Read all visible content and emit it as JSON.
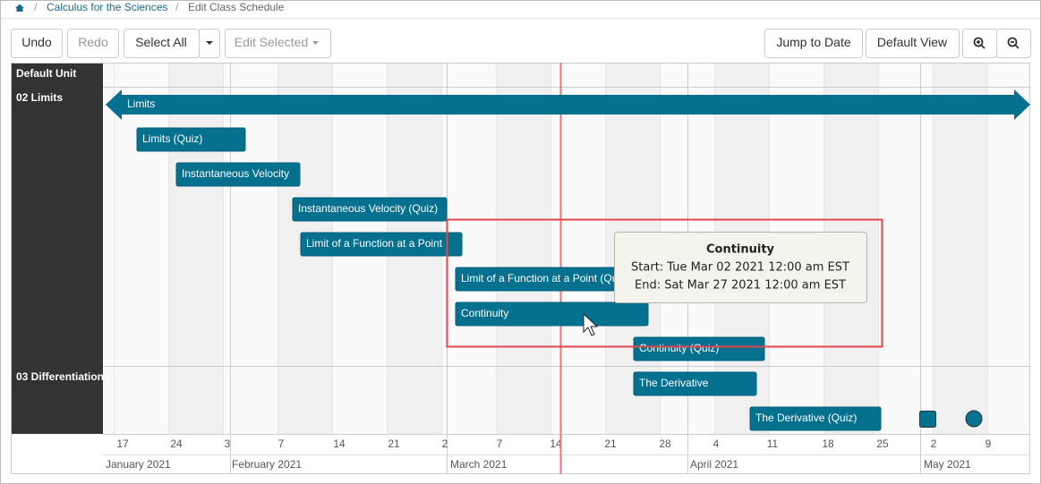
{
  "breadcrumb": {
    "items": [
      "Calculus for the Sciences",
      "Edit Class Schedule"
    ]
  },
  "toolbar": {
    "left": [
      "Undo",
      "Redo",
      "Select All",
      "Edit Selected"
    ],
    "right": [
      "Jump to Date",
      "Default View"
    ]
  },
  "timeline": {
    "units": [
      "Default Unit",
      "02 Limits",
      "03 Differentiation"
    ],
    "items": [
      "Limits",
      "Limits (Quiz)",
      "Instantaneous Velocity",
      "Instantaneous Velocity (Quiz)",
      "Limit of a Function at a Point",
      "Limit of a Function at a Point (Quiz)",
      "Continuity",
      "Continuity (Quiz)",
      "The Derivative",
      "The Derivative (Quiz)"
    ],
    "day_ticks": [
      "17",
      "24",
      "3",
      "7",
      "14",
      "21",
      "2",
      "7",
      "14",
      "21",
      "28",
      "4",
      "11",
      "18",
      "25",
      "2",
      "9"
    ],
    "months": [
      "January 2021",
      "February 2021",
      "March 2021",
      "April 2021",
      "May 2021"
    ]
  },
  "tooltip": {
    "title": "Continuity",
    "start": "Start: Tue Mar 02 2021 12:00 am EST",
    "end": "End: Sat Mar 27 2021 12:00 am EST"
  }
}
